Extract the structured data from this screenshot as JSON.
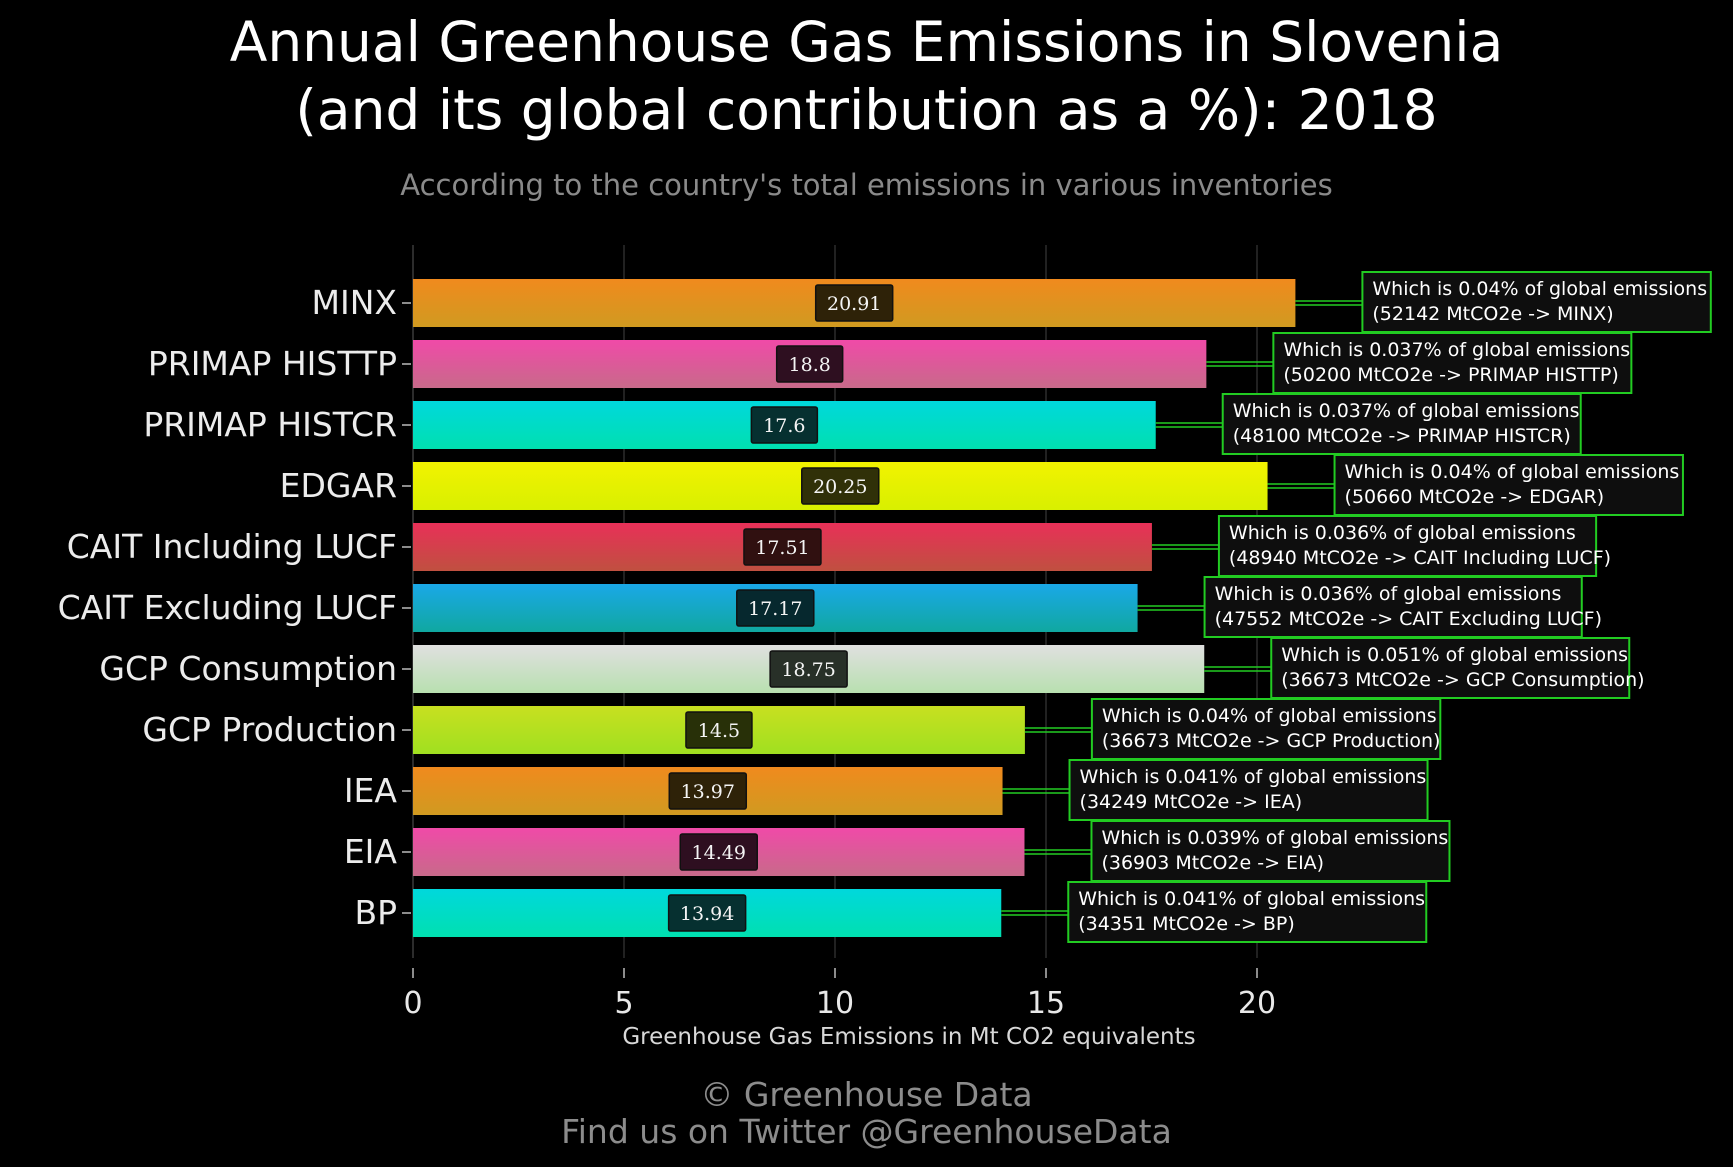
{
  "title_line1": "Annual Greenhouse Gas Emissions in Slovenia",
  "title_line2": "(and its global contribution as a %): 2018",
  "subtitle": "According to the country's total emissions in various inventories",
  "credit_line1": "© Greenhouse Data",
  "credit_line2": "Find us on Twitter @GreenhouseData",
  "chart_data": {
    "type": "bar",
    "orientation": "horizontal",
    "title": "Annual Greenhouse Gas Emissions in Slovenia (and its global contribution as a %): 2018",
    "subtitle": "According to the country's total emissions in various inventories",
    "xlabel": "Greenhouse Gas Emissions in Mt CO2 equivalents",
    "ylabel": "",
    "xlim": [
      0,
      23.5
    ],
    "xticks": [
      "0",
      "5",
      "10",
      "15",
      "20"
    ],
    "grid": "vertical",
    "categories": [
      "MINX",
      "PRIMAP HISTTP",
      "PRIMAP HISTCR",
      "EDGAR",
      "CAIT Including LUCF",
      "CAIT Excluding LUCF",
      "GCP Consumption",
      "GCP Production",
      "IEA",
      "EIA",
      "BP"
    ],
    "values": [
      20.91,
      18.8,
      17.6,
      20.25,
      17.51,
      17.17,
      18.75,
      14.5,
      13.97,
      14.49,
      13.94
    ],
    "value_labels": [
      "20.91",
      "18.8",
      "17.6",
      "20.25",
      "17.51",
      "17.17",
      "18.75",
      "14.5",
      "13.97",
      "14.49",
      "13.94"
    ],
    "annotations": [
      [
        "Which is 0.04% of global emissions",
        "(52142 MtCO2e -> MINX)"
      ],
      [
        "Which is 0.037% of global emissions",
        "(50200 MtCO2e -> PRIMAP HISTTP)"
      ],
      [
        "Which is 0.037% of global emissions",
        "(48100 MtCO2e -> PRIMAP HISTCR)"
      ],
      [
        "Which is 0.04% of global emissions",
        "(50660 MtCO2e -> EDGAR)"
      ],
      [
        "Which is 0.036% of global emissions",
        "(48940 MtCO2e -> CAIT Including LUCF)"
      ],
      [
        "Which is 0.036% of global emissions",
        "(47552 MtCO2e -> CAIT Excluding LUCF)"
      ],
      [
        "Which is 0.051% of global emissions",
        "(36673 MtCO2e -> GCP Consumption)"
      ],
      [
        "Which is 0.04% of global emissions",
        "(36673 MtCO2e -> GCP Production)"
      ],
      [
        "Which is 0.041% of global emissions",
        "(34249 MtCO2e -> IEA)"
      ],
      [
        "Which is 0.039% of global emissions",
        "(36903 MtCO2e -> EIA)"
      ],
      [
        "Which is 0.041% of global emissions",
        "(34351 MtCO2e -> BP)"
      ]
    ],
    "bar_gradients": [
      [
        "#f08a1e",
        "#d09a20"
      ],
      [
        "#f04aa8",
        "#c86a8a"
      ],
      [
        "#00d8dc",
        "#00e0b0"
      ],
      [
        "#f2f200",
        "#d8f000"
      ],
      [
        "#e83058",
        "#c05040"
      ],
      [
        "#1aa8e8",
        "#10a8a0"
      ],
      [
        "#e0e0e0",
        "#b8e0b0"
      ],
      [
        "#c8e020",
        "#a0e020"
      ],
      [
        "#f08a1e",
        "#d09a20"
      ],
      [
        "#f04aa8",
        "#c86a8a"
      ],
      [
        "#00d8dc",
        "#00e0b0"
      ]
    ],
    "label_box_colors": [
      "#2e2208",
      "#2e0f20",
      "#063030",
      "#303008",
      "#301010",
      "#06282e",
      "#283028",
      "#283008",
      "#2e2208",
      "#2e0f20",
      "#063030"
    ],
    "annotation_border": "#22cc22",
    "annotation_fill": "#0e0e0e"
  }
}
